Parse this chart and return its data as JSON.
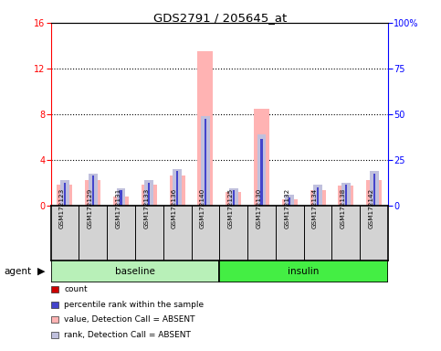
{
  "title": "GDS2791 / 205645_at",
  "samples": [
    "GSM172123",
    "GSM172129",
    "GSM172131",
    "GSM172133",
    "GSM172136",
    "GSM172140",
    "GSM172125",
    "GSM172130",
    "GSM172132",
    "GSM172134",
    "GSM172138",
    "GSM172142"
  ],
  "groups": [
    {
      "name": "baseline",
      "count": 6,
      "color": "#b8f0b8"
    },
    {
      "name": "insulin",
      "count": 6,
      "color": "#44ee44"
    }
  ],
  "value_absent": [
    1.8,
    2.2,
    0.8,
    1.8,
    2.6,
    13.5,
    1.2,
    8.5,
    0.5,
    1.3,
    1.7,
    2.2
  ],
  "rank_absent_pct": [
    13.75,
    17.5,
    9.375,
    13.75,
    20.0,
    48.75,
    9.375,
    38.75,
    5.625,
    11.25,
    12.5,
    18.75
  ],
  "count": [
    0.45,
    0.45,
    0.35,
    0.45,
    0.45,
    0.45,
    0.25,
    0.45,
    0.22,
    0.35,
    0.45,
    0.45
  ],
  "rank_pct": [
    12.5,
    16.25,
    8.125,
    12.5,
    18.75,
    47.5,
    8.125,
    36.25,
    4.375,
    10.0,
    11.25,
    17.5
  ],
  "ylim_left": [
    0,
    16
  ],
  "ylim_right": [
    0,
    100
  ],
  "yticks_left": [
    0,
    4,
    8,
    12,
    16
  ],
  "yticks_right": [
    0,
    25,
    50,
    75,
    100
  ],
  "yticklabels_right": [
    "0",
    "25",
    "50",
    "75",
    "100%"
  ],
  "color_count": "#cc0000",
  "color_rank": "#4444cc",
  "color_value_absent": "#ffb3b3",
  "color_rank_absent": "#c0c0dd",
  "bg_color": "#d3d3d3",
  "agent_label": "agent",
  "legend_items": [
    {
      "label": "count",
      "color": "#cc0000"
    },
    {
      "label": "percentile rank within the sample",
      "color": "#4444cc"
    },
    {
      "label": "value, Detection Call = ABSENT",
      "color": "#ffb3b3"
    },
    {
      "label": "rank, Detection Call = ABSENT",
      "color": "#c0c0dd"
    }
  ]
}
